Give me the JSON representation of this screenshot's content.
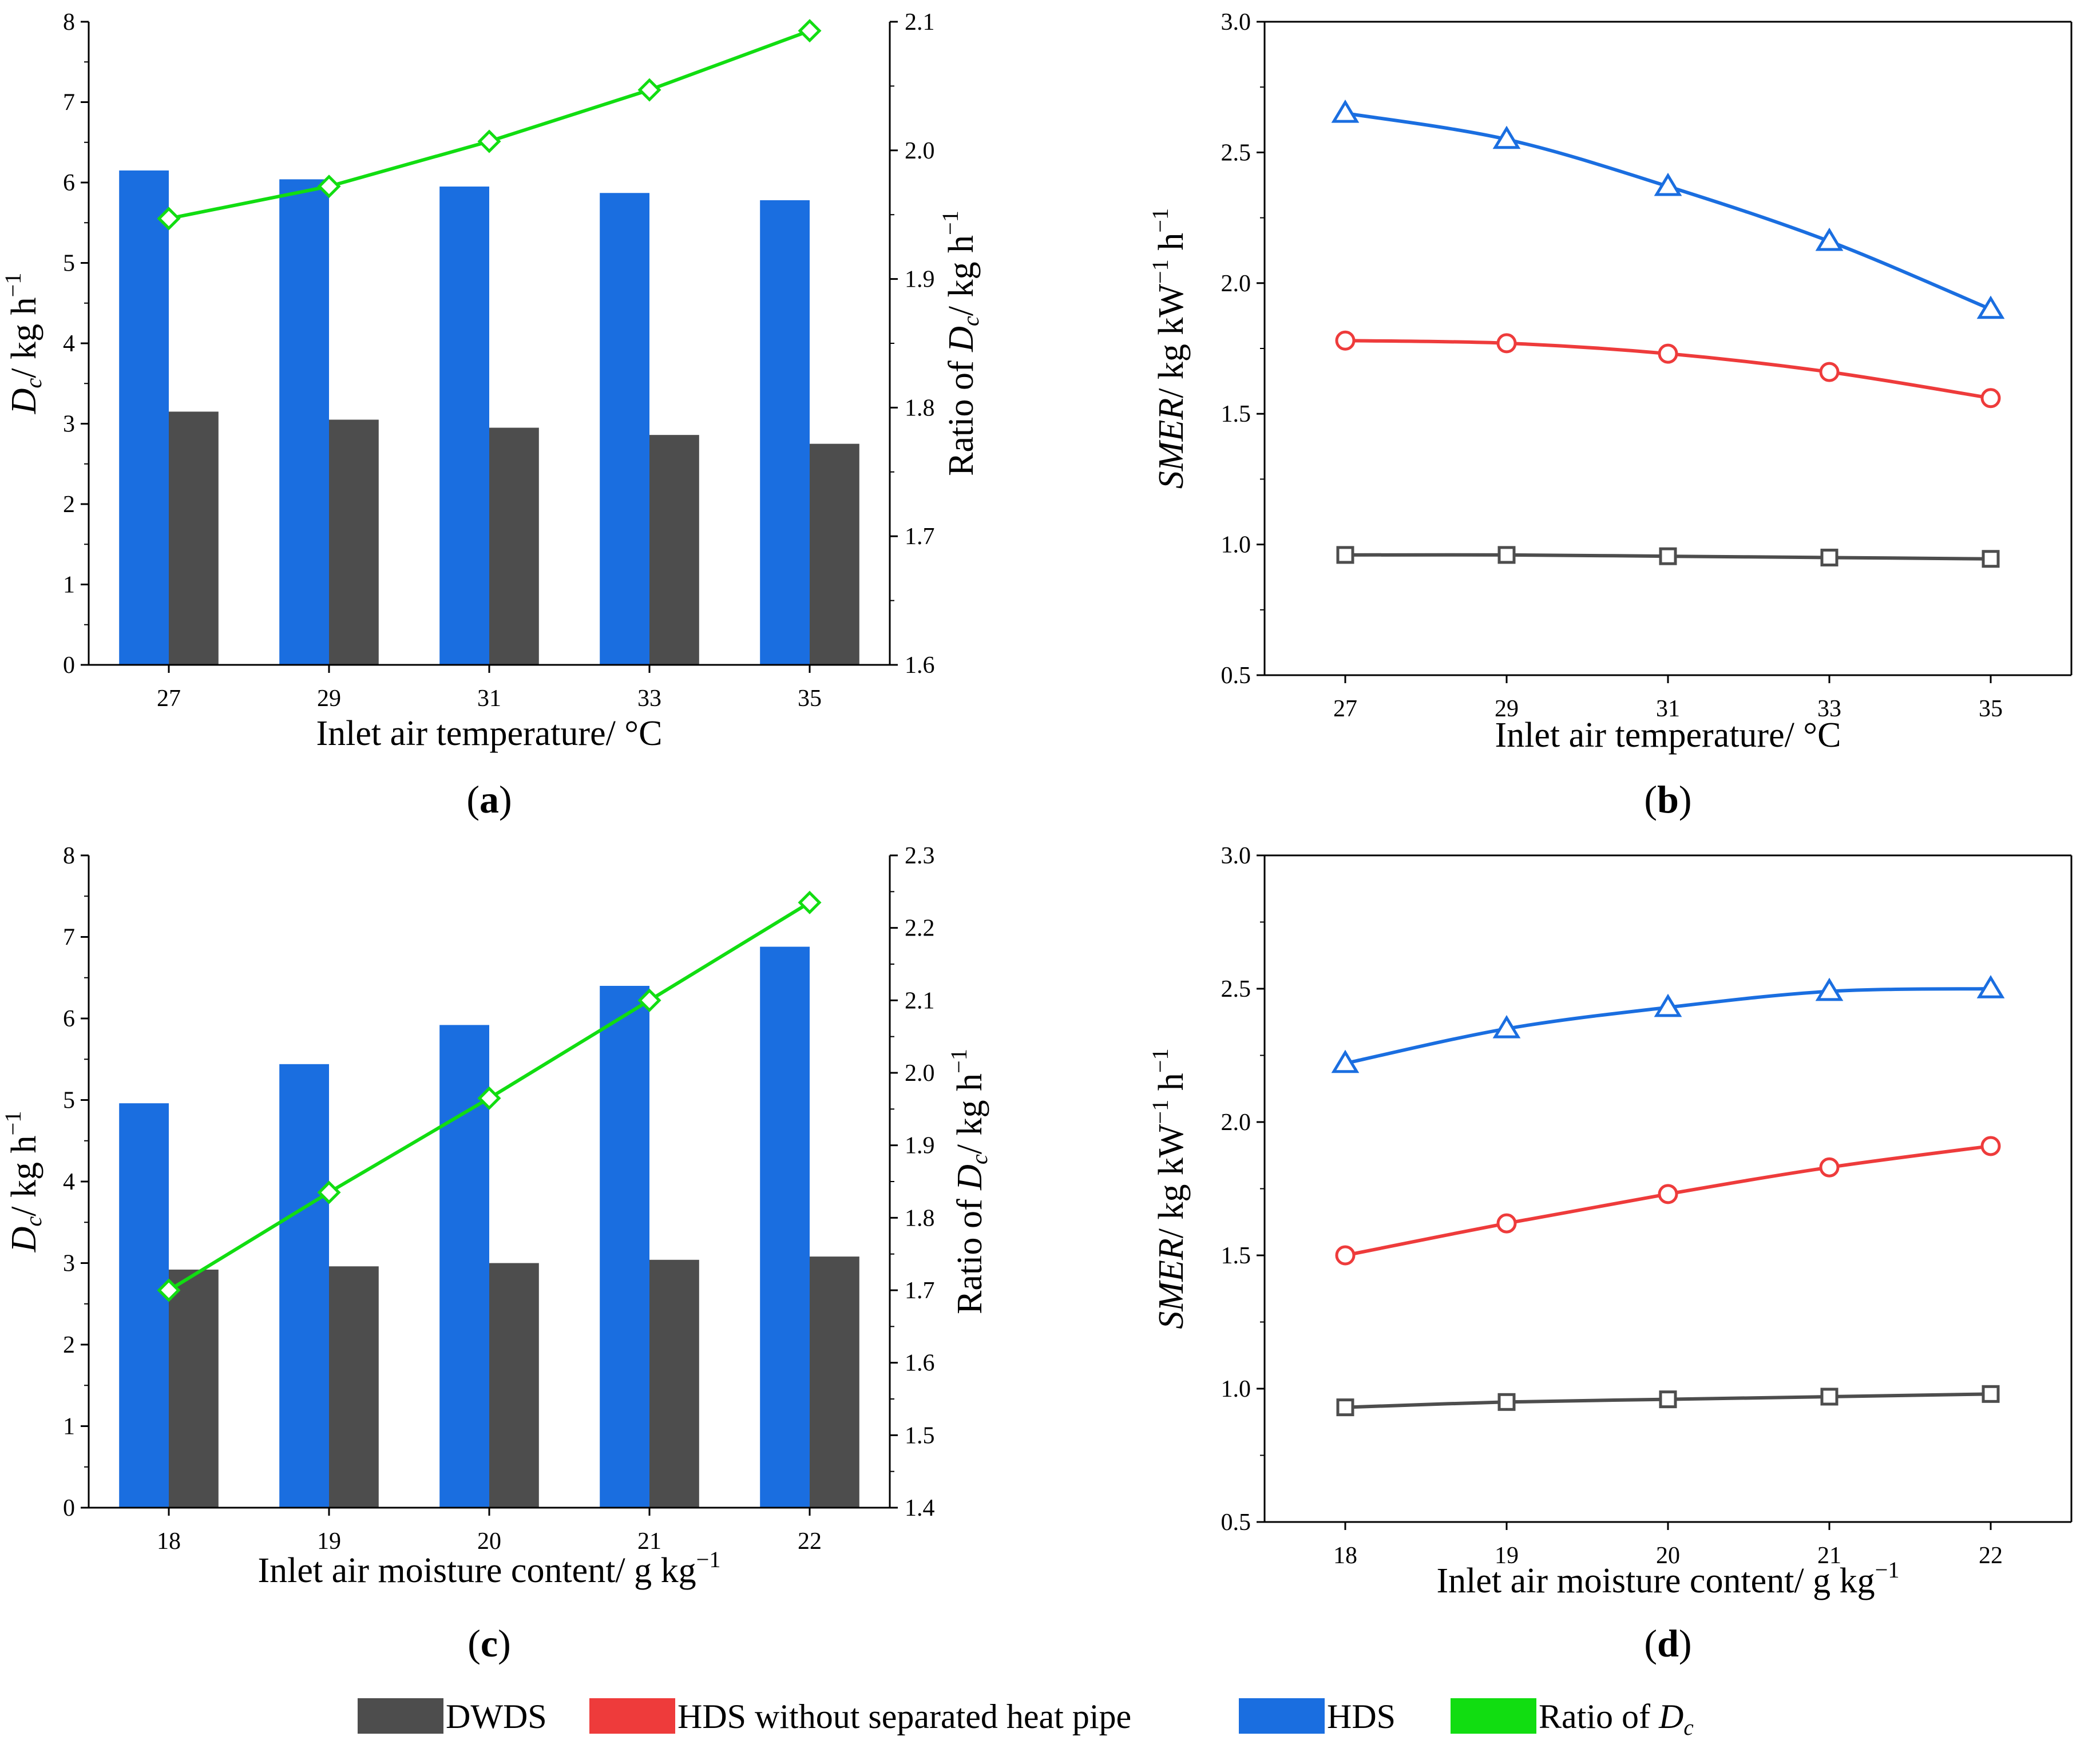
{
  "legend": [
    {
      "label": "DWDS",
      "color": "#4d4d4d"
    },
    {
      "label": "HDS without separated heat pipe",
      "color": "#ee3b3b"
    },
    {
      "label": "HDS",
      "color": "#1a6ee0"
    },
    {
      "label": "Ratio of ",
      "italic_suffix": "D",
      "sub": "c",
      "color": "#11dd11"
    }
  ],
  "chart_data": [
    {
      "id": "a",
      "caption": "a",
      "type": "bar",
      "title": "",
      "categories": [
        "27",
        "29",
        "31",
        "33",
        "35"
      ],
      "xlabel": "Inlet air temperature/ °C",
      "ylabel": {
        "italic": "D",
        "sub": "c",
        "rest": "/ kg h",
        "sup": "−1"
      },
      "ylim": [
        0,
        8
      ],
      "yticks": [
        "0",
        "1",
        "2",
        "3",
        "4",
        "5",
        "6",
        "7",
        "8"
      ],
      "series": [
        {
          "name": "HDS",
          "color": "#1a6ee0",
          "values": [
            6.15,
            6.04,
            5.95,
            5.87,
            5.78
          ]
        },
        {
          "name": "DWDS",
          "color": "#4d4d4d",
          "values": [
            3.15,
            3.05,
            2.95,
            2.86,
            2.75
          ]
        }
      ],
      "y2label": {
        "pre": "Ratio of ",
        "italic": "D",
        "sub": "c",
        "rest": "/ kg h",
        "sup": "−1"
      },
      "y2lim": [
        1.6,
        2.1
      ],
      "y2ticks": [
        "1.6",
        "1.7",
        "1.8",
        "1.9",
        "2.0",
        "2.1"
      ],
      "line": {
        "name": "Ratio of Dc",
        "color": "#11dd11",
        "marker": "diamond",
        "values": [
          1.947,
          1.972,
          2.007,
          2.047,
          2.093
        ]
      }
    },
    {
      "id": "b",
      "caption": "b",
      "type": "line",
      "title": "",
      "categories": [
        "27",
        "29",
        "31",
        "33",
        "35"
      ],
      "xlabel": "Inlet air temperature/ °C",
      "ylabel": {
        "italic": "SMER",
        "rest": "/ kg kW",
        "sup": "−1",
        "rest2": " h",
        "sup2": "−1"
      },
      "ylim": [
        0.5,
        3.0
      ],
      "yticks": [
        "0.5",
        "1.0",
        "1.5",
        "2.0",
        "2.5",
        "3.0"
      ],
      "series": [
        {
          "name": "HDS",
          "color": "#1a6ee0",
          "marker": "triangle",
          "values": [
            2.65,
            2.55,
            2.37,
            2.16,
            1.9
          ]
        },
        {
          "name": "HDS without separated heat pipe",
          "color": "#ee3b3b",
          "marker": "circle",
          "values": [
            1.78,
            1.77,
            1.73,
            1.66,
            1.56
          ]
        },
        {
          "name": "DWDS",
          "color": "#4d4d4d",
          "marker": "square",
          "values": [
            0.96,
            0.96,
            0.955,
            0.95,
            0.945
          ]
        }
      ]
    },
    {
      "id": "c",
      "caption": "c",
      "type": "bar",
      "title": "",
      "categories": [
        "18",
        "19",
        "20",
        "21",
        "22"
      ],
      "xlabel": {
        "rest": "Inlet air moisture content/ g kg",
        "sup": "−1"
      },
      "ylabel": {
        "italic": "D",
        "sub": "c",
        "rest": "/ kg h",
        "sup": "−1"
      },
      "ylim": [
        0,
        8
      ],
      "yticks": [
        "0",
        "1",
        "2",
        "3",
        "4",
        "5",
        "6",
        "7",
        "8"
      ],
      "series": [
        {
          "name": "HDS",
          "color": "#1a6ee0",
          "values": [
            4.96,
            5.44,
            5.92,
            6.4,
            6.88
          ]
        },
        {
          "name": "DWDS",
          "color": "#4d4d4d",
          "values": [
            2.92,
            2.96,
            3.0,
            3.04,
            3.08
          ]
        }
      ],
      "y2label": {
        "pre": "Ratio of ",
        "italic": "D",
        "sub": "c",
        "rest": "/ kg h",
        "sup": "−1"
      },
      "y2lim": [
        1.4,
        2.3
      ],
      "y2ticks": [
        "1.4",
        "1.5",
        "1.6",
        "1.7",
        "1.8",
        "1.9",
        "2.0",
        "2.1",
        "2.2",
        "2.3"
      ],
      "line": {
        "name": "Ratio of Dc",
        "color": "#11dd11",
        "marker": "diamond",
        "values": [
          1.7,
          1.835,
          1.965,
          2.1,
          2.235
        ]
      }
    },
    {
      "id": "d",
      "caption": "d",
      "type": "line",
      "title": "",
      "categories": [
        "18",
        "19",
        "20",
        "21",
        "22"
      ],
      "xlabel": {
        "rest": "Inlet air moisture content/ g kg",
        "sup": "−1"
      },
      "ylabel": {
        "italic": "SMER",
        "rest": "/ kg kW",
        "sup": "−1",
        "rest2": " h",
        "sup2": "−1"
      },
      "ylim": [
        0.5,
        3.0
      ],
      "yticks": [
        "0.5",
        "1.0",
        "1.5",
        "2.0",
        "2.5",
        "3.0"
      ],
      "series": [
        {
          "name": "HDS",
          "color": "#1a6ee0",
          "marker": "triangle",
          "values": [
            2.22,
            2.35,
            2.43,
            2.49,
            2.5
          ]
        },
        {
          "name": "HDS without separated heat pipe",
          "color": "#ee3b3b",
          "marker": "circle",
          "values": [
            1.5,
            1.62,
            1.73,
            1.83,
            1.91
          ]
        },
        {
          "name": "DWDS",
          "color": "#4d4d4d",
          "marker": "square",
          "values": [
            0.93,
            0.95,
            0.96,
            0.97,
            0.98
          ]
        }
      ]
    }
  ]
}
